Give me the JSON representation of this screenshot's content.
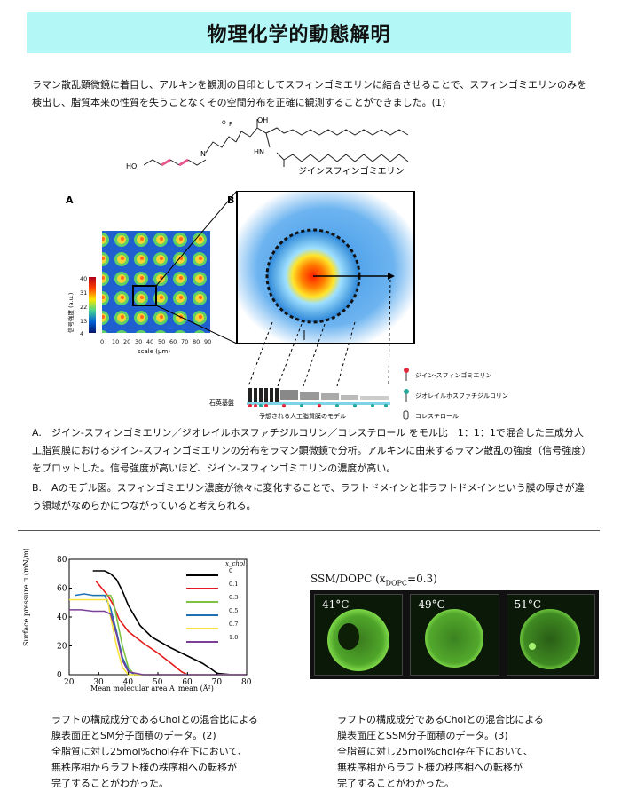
{
  "title": "物理化学的動態解明",
  "intro": "ラマン散乱顕微鏡に着目し、アルキンを観測の目印としてスフィンゴミエリンに結合させることで、スフィンゴミエリンのみを検出し、脂質本来の性質を失うことなくその空間分布を正確に観測することができました。(1)",
  "molecule": {
    "name": "ジインスフィンゴミエリン",
    "atoms": {
      "ho": "HO",
      "n": "N",
      "oh": "OH",
      "hn": "HN",
      "p": "P",
      "o": "O"
    }
  },
  "figure": {
    "label_a": "A",
    "label_b": "B",
    "colorbar_title": "信号強度 (a.u.)",
    "colorbar_ticks": [
      "40",
      "31",
      "22",
      "13",
      "4"
    ],
    "scale_ticks": [
      "0",
      "10",
      "20",
      "30",
      "40",
      "50",
      "60",
      "70",
      "80",
      "90"
    ],
    "scale_label": "scale (µm)",
    "legend": [
      {
        "label": "ジイン-スフィンゴミエリン",
        "color": "#e2283a"
      },
      {
        "label": "ジオレイルホスファチジルコリン",
        "color": "#22a89b"
      },
      {
        "label": "コレステロール",
        "color": "#ffffff"
      }
    ],
    "substrate_label": "石英基盤",
    "model_label": "予想される人工脂質膜のモデル"
  },
  "caption_a": "A.　ジイン-スフィンゴミエリン／ジオレイルホスファチジルコリン／コレステロール をモル比　1：1：1で混合した三成分人工脂質膜におけるジイン-スフィンゴミエリンの分布をラマン顕微鏡で分析。アルキンに由来するラマン散乱の強度（信号強度）をプロットした。信号強度が高いほど、ジイン-スフィンゴミエリンの濃度が高い。",
  "caption_b": "B.　Aのモデル図。スフィンゴミエリン濃度が徐々に変化することで、ラフトドメインと非ラフトドメインという膜の厚さが違う領域がなめらかにつながっていると考えられる。",
  "chart_data": {
    "type": "line",
    "title": "",
    "xlabel": "Mean molecular area A_mean (Å²)",
    "ylabel": "Surface pressure π (mN/m)",
    "xlim": [
      20,
      80
    ],
    "ylim": [
      0,
      80
    ],
    "xticks": [
      20,
      30,
      40,
      50,
      60,
      70,
      80
    ],
    "yticks": [
      0,
      20,
      40,
      60,
      80
    ],
    "legend_title": "x_chol",
    "legend_placement": "top-right",
    "series": [
      {
        "name": "0",
        "color": "#000000",
        "x": [
          28,
          32,
          34,
          36,
          38,
          40,
          44,
          48,
          54,
          60,
          65,
          68,
          70,
          75,
          80
        ],
        "y": [
          72,
          72,
          70,
          66,
          58,
          48,
          34,
          26,
          19,
          13,
          8,
          4,
          1,
          0,
          0
        ]
      },
      {
        "name": "0.1",
        "color": "#e41a1c",
        "x": [
          29,
          31,
          33,
          35,
          37,
          40,
          45,
          50,
          55,
          58,
          60,
          65
        ],
        "y": [
          65,
          60,
          55,
          48,
          38,
          30,
          22,
          15,
          7,
          2,
          0,
          0
        ]
      },
      {
        "name": "0.3",
        "color": "#7fc241",
        "x": [
          28,
          30,
          32,
          34,
          35,
          36,
          38,
          40,
          42,
          50,
          80
        ],
        "y": [
          55,
          55,
          55,
          55,
          50,
          40,
          20,
          5,
          0,
          0,
          0
        ]
      },
      {
        "name": "0.5",
        "color": "#1f6fb4",
        "x": [
          22,
          25,
          28,
          30,
          32,
          34,
          36,
          38,
          40,
          42,
          50,
          80
        ],
        "y": [
          55,
          56,
          55,
          55,
          55,
          46,
          30,
          12,
          3,
          0,
          0,
          0
        ]
      },
      {
        "name": "0.7",
        "color": "#f7e33d",
        "x": [
          20,
          24,
          28,
          31,
          33,
          34,
          36,
          38,
          40,
          45,
          80
        ],
        "y": [
          52,
          52,
          52,
          52,
          52,
          40,
          20,
          5,
          0,
          0,
          0
        ]
      },
      {
        "name": "1.0",
        "color": "#7b3f98",
        "x": [
          20,
          24,
          28,
          32,
          34,
          36,
          38,
          40,
          45,
          80
        ],
        "y": [
          45,
          45,
          44,
          44,
          42,
          28,
          10,
          2,
          0,
          0
        ]
      }
    ]
  },
  "micro": {
    "title": "SSM/DOPC (x",
    "title_sub": "DOPC",
    "title_end": "=0.3)",
    "panels": [
      "41°C",
      "49°C",
      "51°C"
    ]
  },
  "caption_c": [
    "ラフトの構成成分であるCholとの混合比による",
    "膜表面圧とSM分子面積のデータ。(2)",
    "全脂質に対し25mol%chol存在下において、",
    "無秩序相からラフト様の秩序相への転移が",
    "完了することがわかった。"
  ],
  "caption_d": [
    "ラフトの構成成分であるCholとの混合比による",
    "膜表面圧とSSM分子面積のデータ。(3)",
    "全脂質に対し25mol%chol存在下において、",
    "無秩序相からラフト様の秩序相への転移が",
    "完了することがわかった。"
  ]
}
